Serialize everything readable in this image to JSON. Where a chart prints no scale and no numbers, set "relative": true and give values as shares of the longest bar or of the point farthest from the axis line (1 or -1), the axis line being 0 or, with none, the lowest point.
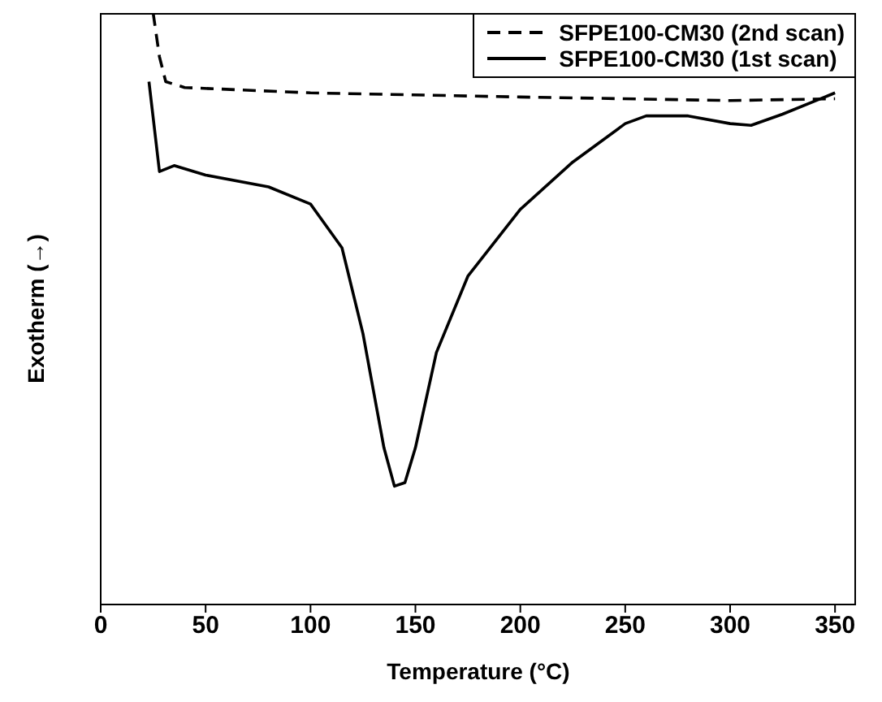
{
  "chart_data": {
    "type": "line",
    "relative": true,
    "xlabel": "Temperature (°C)",
    "ylabel": "Exotherm (→)",
    "xlim": [
      0,
      360
    ],
    "xticks": [
      0,
      50,
      100,
      150,
      200,
      250,
      300,
      350
    ],
    "legend": "top right",
    "marker": "none",
    "series": [
      {
        "name": "SFPE100-CM30 (2nd scan)",
        "color": "#000000",
        "line_style": "dashed",
        "x": [
          25,
          28,
          31,
          40,
          100,
          200,
          300,
          350
        ],
        "values": [
          1.0,
          0.926,
          0.884,
          0.874,
          0.865,
          0.858,
          0.852,
          0.855
        ]
      },
      {
        "name": "SFPE100-CM30 (1st scan)",
        "color": "#000000",
        "line_style": "solid",
        "x": [
          23,
          28,
          35,
          50,
          80,
          100,
          115,
          125,
          135,
          140,
          145,
          150,
          160,
          175,
          200,
          225,
          250,
          260,
          280,
          300,
          310,
          325,
          350
        ],
        "values": [
          0.884,
          0.732,
          0.742,
          0.726,
          0.706,
          0.677,
          0.603,
          0.458,
          0.265,
          0.2,
          0.206,
          0.265,
          0.426,
          0.555,
          0.668,
          0.748,
          0.813,
          0.826,
          0.826,
          0.813,
          0.81,
          0.829,
          0.865
        ]
      }
    ]
  }
}
